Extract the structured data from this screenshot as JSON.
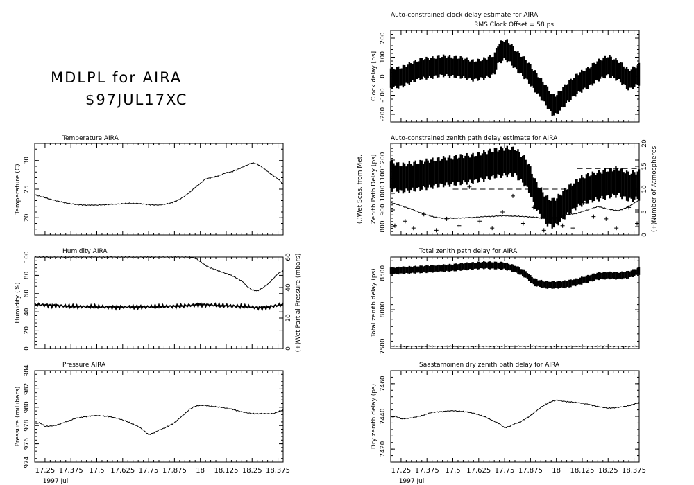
{
  "header": {
    "title": "MDLPL for AIRA",
    "session": "$97JUL17XC"
  },
  "x_axis": {
    "ticks": [
      17.25,
      17.375,
      17.5,
      17.625,
      17.75,
      17.875,
      18,
      18.125,
      18.25,
      18.375
    ],
    "tick_labels": [
      "17.25",
      "17.375",
      "17.5",
      "17.625",
      "17.75",
      "17.875",
      "18",
      "18.125",
      "18.25",
      "18.375"
    ],
    "range": [
      17.2,
      18.4
    ],
    "under_label": "1997 Jul"
  },
  "chart_data": [
    {
      "id": "temperature",
      "type": "line",
      "title": "Temperature   AIRA",
      "ylabel": "Temperature (C)",
      "ylim": [
        17,
        33
      ],
      "yticks": [
        20,
        25,
        30
      ],
      "series": [
        {
          "color": "#000000",
          "x": [
            17.2,
            17.25,
            17.3,
            17.35,
            17.4,
            17.45,
            17.5,
            17.55,
            17.6,
            17.65,
            17.7,
            17.75,
            17.8,
            17.85,
            17.875,
            17.9,
            17.925,
            17.95,
            17.975,
            18.0,
            18.025,
            18.05,
            18.075,
            18.1,
            18.125,
            18.15,
            18.175,
            18.2,
            18.225,
            18.25,
            18.275,
            18.3,
            18.325,
            18.35,
            18.375,
            18.4
          ],
          "y": [
            24.0,
            23.5,
            23.0,
            22.6,
            22.3,
            22.2,
            22.2,
            22.3,
            22.4,
            22.5,
            22.5,
            22.3,
            22.2,
            22.5,
            22.8,
            23.2,
            23.8,
            24.5,
            25.3,
            26.0,
            26.8,
            27.0,
            27.2,
            27.5,
            27.9,
            28.0,
            28.4,
            28.8,
            29.2,
            29.6,
            29.4,
            28.8,
            28.1,
            27.4,
            26.8,
            25.9
          ]
        }
      ]
    },
    {
      "id": "humidity",
      "type": "line",
      "title": "Humidity       AIRA",
      "ylabel": "Humidity (%)",
      "ylim": [
        0,
        100
      ],
      "yticks": [
        0,
        20,
        40,
        60,
        80,
        100
      ],
      "y2label": "(+)Wet Partial Pressure (mbars)",
      "y2lim": [
        0,
        60
      ],
      "y2ticks": [
        0,
        20,
        40,
        60
      ],
      "series": [
        {
          "name": "Humidity",
          "color": "#000000",
          "x": [
            17.2,
            17.25,
            17.3,
            17.35,
            17.4,
            17.45,
            17.5,
            17.55,
            17.6,
            17.65,
            17.7,
            17.75,
            17.8,
            17.85,
            17.875,
            17.9,
            17.925,
            17.95,
            17.975,
            18.0,
            18.025,
            18.05,
            18.075,
            18.1,
            18.125,
            18.15,
            18.175,
            18.2,
            18.225,
            18.25,
            18.275,
            18.3,
            18.325,
            18.35,
            18.375,
            18.4
          ],
          "y": [
            100,
            100,
            100,
            100,
            100,
            100,
            100,
            100,
            100,
            100,
            100,
            100,
            100,
            100,
            100,
            100,
            100,
            100,
            99,
            95,
            91,
            88,
            86,
            84,
            82,
            80,
            77,
            74,
            68,
            64,
            63,
            66,
            70,
            76,
            82,
            85
          ]
        },
        {
          "name": "(+)Wet Partial Pressure",
          "color": "#000000",
          "axis": "right",
          "jitter": 1.2,
          "x": [
            17.2,
            17.3,
            17.4,
            17.5,
            17.6,
            17.7,
            17.8,
            17.9,
            18.0,
            18.1,
            18.2,
            18.3,
            18.4
          ],
          "y": [
            28.8,
            28.2,
            27.5,
            27.3,
            27.2,
            27.3,
            27.4,
            27.8,
            28.8,
            28.2,
            27.6,
            26.6,
            28.9
          ]
        }
      ]
    },
    {
      "id": "pressure",
      "type": "line",
      "title": "Pressure        AIRA",
      "ylabel": "Pressure (millibars)",
      "ylim": [
        974,
        984
      ],
      "yticks": [
        974,
        976,
        978,
        980,
        982,
        984
      ],
      "series": [
        {
          "color": "#000000",
          "x": [
            17.2,
            17.225,
            17.25,
            17.3,
            17.35,
            17.4,
            17.45,
            17.5,
            17.55,
            17.6,
            17.65,
            17.7,
            17.725,
            17.75,
            17.775,
            17.8,
            17.825,
            17.85,
            17.875,
            17.9,
            17.925,
            17.95,
            17.975,
            18.0,
            18.025,
            18.05,
            18.1,
            18.15,
            18.2,
            18.25,
            18.3,
            18.35,
            18.375,
            18.4
          ],
          "y": [
            978.2,
            978.3,
            977.9,
            978.0,
            978.4,
            978.8,
            979.0,
            979.1,
            979.0,
            978.8,
            978.4,
            977.9,
            977.5,
            977.0,
            977.2,
            977.5,
            977.7,
            978.0,
            978.3,
            978.8,
            979.3,
            979.8,
            980.1,
            980.2,
            980.2,
            980.1,
            980.0,
            979.8,
            979.5,
            979.3,
            979.3,
            979.3,
            979.5,
            979.7
          ]
        }
      ]
    },
    {
      "id": "clock-delay",
      "type": "line",
      "title": "Auto-constrained clock delay estimate for AIRA",
      "subtitle": "RMS Clock Offset = 58 ps.",
      "ylabel": "Clock delay [ps]",
      "ylim": [
        -240,
        240
      ],
      "yticks": [
        -200,
        -100,
        0,
        100,
        200
      ],
      "series": [
        {
          "color": "#000000",
          "band": 60,
          "x": [
            17.2,
            17.25,
            17.3,
            17.35,
            17.4,
            17.45,
            17.5,
            17.55,
            17.6,
            17.65,
            17.7,
            17.72,
            17.75,
            17.78,
            17.8,
            17.85,
            17.9,
            17.95,
            17.98,
            18.0,
            18.05,
            18.1,
            18.15,
            18.2,
            18.25,
            18.3,
            18.35,
            18.4
          ],
          "y": [
            -10,
            -5,
            20,
            40,
            45,
            55,
            50,
            45,
            30,
            40,
            60,
            120,
            140,
            120,
            90,
            40,
            -30,
            -100,
            -150,
            -150,
            -90,
            -40,
            -10,
            30,
            55,
            30,
            -20,
            10
          ]
        }
      ]
    },
    {
      "id": "zenith-path-delay-estimate",
      "type": "line",
      "title": "Auto-constrained zenith path delay estimate for AIRA",
      "ylabel": "Zenith Path Delay [ps]",
      "ylabel2": "(.)Wet Scas. from Met.",
      "ylim": [
        750,
        1300
      ],
      "yticks": [
        800,
        900,
        1000,
        1100,
        1200
      ],
      "y2label": "(+)Number of Atmospheres",
      "y2lim": [
        0,
        20
      ],
      "y2ticks": [
        0,
        5,
        10,
        15,
        20
      ],
      "series": [
        {
          "name": "Zenith Path Delay",
          "color": "#000000",
          "band": 95,
          "x": [
            17.2,
            17.25,
            17.3,
            17.35,
            17.4,
            17.45,
            17.5,
            17.55,
            17.6,
            17.65,
            17.7,
            17.75,
            17.8,
            17.85,
            17.875,
            17.9,
            17.95,
            17.98,
            18.0,
            18.05,
            18.1,
            18.15,
            18.2,
            18.25,
            18.3,
            18.35,
            18.4
          ],
          "y": [
            1110,
            1090,
            1100,
            1110,
            1120,
            1130,
            1135,
            1145,
            1150,
            1165,
            1180,
            1190,
            1190,
            1130,
            1070,
            990,
            900,
            880,
            890,
            950,
            1000,
            1030,
            1045,
            1060,
            1070,
            1040,
            1050
          ]
        },
        {
          "name": "(.)Wet Scas. from Met.",
          "color": "#000000",
          "x": [
            17.2,
            17.25,
            17.3,
            17.35,
            17.4,
            17.45,
            17.5,
            17.55,
            17.6,
            17.65,
            17.7,
            17.75,
            17.8,
            17.85,
            17.9,
            17.95,
            18.0,
            18.05,
            18.1,
            18.15,
            18.2,
            18.25,
            18.3,
            18.35,
            18.4
          ],
          "y": [
            945,
            925,
            905,
            880,
            860,
            850,
            850,
            852,
            855,
            860,
            862,
            865,
            862,
            860,
            855,
            850,
            855,
            870,
            880,
            900,
            920,
            905,
            895,
            920,
            960
          ]
        },
        {
          "name": "(+)Number of Atmospheres",
          "color": "#000000",
          "axis": "right",
          "markers": "plus",
          "x": [
            17.22,
            17.27,
            17.31,
            17.36,
            17.42,
            17.47,
            17.53,
            17.58,
            17.63,
            17.69,
            17.74,
            17.79,
            17.84,
            17.89,
            17.94,
            17.99,
            18.03,
            18.08,
            18.13,
            18.18,
            18.24,
            18.29,
            18.35,
            18.39
          ],
          "y": [
            2.0,
            3.0,
            1.5,
            4.5,
            1.0,
            3.5,
            2.0,
            10.5,
            3.0,
            1.5,
            5.0,
            8.5,
            2.5,
            6.0,
            1.0,
            3.5,
            2.0,
            1.5,
            7.0,
            4.0,
            3.5,
            1.5,
            6.0,
            2.5
          ]
        }
      ],
      "dashed_lines": [
        {
          "y2": 14.5,
          "x": [
            18.1,
            18.4
          ]
        },
        {
          "y2": 10.0,
          "x": [
            17.5,
            18.1
          ]
        }
      ]
    },
    {
      "id": "total-zenith-path-delay",
      "type": "line",
      "title": "Total zenith path delay for AIRA",
      "ylabel": "Total zenith delay (ps)",
      "ylim": [
        7470,
        8720
      ],
      "yticks": [
        7500,
        8000,
        8500
      ],
      "series": [
        {
          "name": "Total zenith delay",
          "color": "#000000",
          "band": 55,
          "x": [
            17.2,
            17.3,
            17.4,
            17.5,
            17.55,
            17.6,
            17.65,
            17.7,
            17.75,
            17.8,
            17.85,
            17.875,
            17.9,
            17.95,
            18.0,
            18.05,
            18.1,
            18.15,
            18.2,
            18.25,
            18.3,
            18.35,
            18.4
          ],
          "y": [
            8530,
            8545,
            8560,
            8575,
            8590,
            8600,
            8610,
            8605,
            8600,
            8560,
            8490,
            8420,
            8370,
            8340,
            8340,
            8350,
            8380,
            8420,
            8460,
            8470,
            8465,
            8480,
            8530
          ]
        },
        {
          "name": "Dry baseline",
          "color": "#000000",
          "x": [
            17.2,
            18.4
          ],
          "y": [
            7500,
            7500
          ]
        }
      ]
    },
    {
      "id": "dry-zenith-path-delay",
      "type": "line",
      "title": "Saastamoinen dry zenith path delay for AIRA",
      "ylabel": "Dry zenith delay (ps)",
      "ylim": [
        7412,
        7468
      ],
      "yticks": [
        7420,
        7440,
        7460
      ],
      "series": [
        {
          "color": "#000000",
          "x": [
            17.2,
            17.225,
            17.25,
            17.3,
            17.35,
            17.4,
            17.45,
            17.5,
            17.55,
            17.6,
            17.65,
            17.7,
            17.725,
            17.75,
            17.775,
            17.8,
            17.825,
            17.85,
            17.875,
            17.9,
            17.925,
            17.95,
            17.975,
            18.0,
            18.025,
            18.05,
            18.1,
            18.15,
            18.2,
            18.25,
            18.3,
            18.35,
            18.375,
            18.4
          ],
          "y": [
            7439.5,
            7440.0,
            7438.5,
            7439.0,
            7440.5,
            7442.5,
            7443.0,
            7443.5,
            7443.0,
            7442.0,
            7440.0,
            7437.0,
            7435.5,
            7433.0,
            7434.0,
            7435.5,
            7436.5,
            7438.5,
            7440.5,
            7443.0,
            7445.5,
            7447.5,
            7449.0,
            7450.0,
            7449.5,
            7449.0,
            7448.5,
            7447.5,
            7446.0,
            7445.0,
            7445.5,
            7446.5,
            7447.5,
            7448.5
          ]
        }
      ]
    }
  ]
}
